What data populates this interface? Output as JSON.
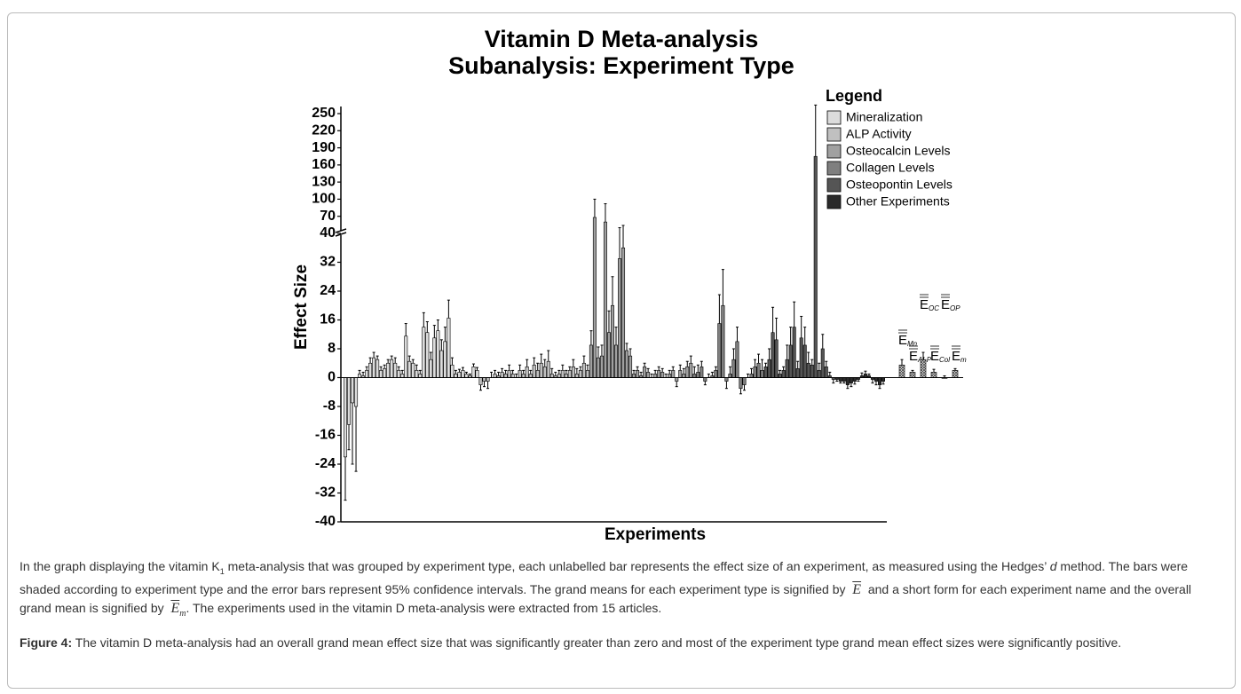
{
  "chart_data": {
    "type": "bar",
    "title": "Vitamin D Meta-analysis",
    "subtitle": "Subanalysis: Experiment Type",
    "y_label": "Effect Size",
    "x_label": "Experiments",
    "legend_title": "Legend",
    "ylim": [
      -40,
      250
    ],
    "ybreak": 40,
    "yticks": [
      -40,
      -32,
      -24,
      -16,
      -8,
      0,
      8,
      16,
      24,
      32,
      40,
      70,
      100,
      130,
      160,
      190,
      220,
      250
    ],
    "series": [
      {
        "name": "Mineralization",
        "color": "#dcdcdc",
        "values": [
          -22,
          -13,
          -7,
          -8,
          1,
          0.5,
          2,
          4,
          5.5,
          5,
          2,
          2.5,
          4,
          5,
          4,
          2,
          1,
          11.5,
          4.5,
          4,
          2,
          1,
          14,
          12.5,
          5,
          11,
          13,
          7.5,
          10,
          16.5,
          3.5,
          1,
          1.5,
          2,
          1,
          0.5,
          3,
          2
        ],
        "errors": [
          12,
          7,
          17,
          18,
          1,
          1,
          1,
          1.5,
          1.5,
          1,
          1,
          1,
          1,
          1,
          1.5,
          1,
          1,
          3.5,
          1.5,
          1,
          1.5,
          1,
          4,
          3,
          2,
          3.5,
          3,
          3,
          4,
          5,
          2,
          1,
          0.8,
          0.8,
          0.5,
          0.5,
          0.8,
          0.8
        ]
      },
      {
        "name": "ALP Activity",
        "color": "#c0c0c0",
        "values": [
          -2,
          -1,
          -1,
          0,
          1,
          0.5,
          1.5,
          1,
          2,
          1,
          0,
          2,
          1,
          3,
          1,
          3.5,
          2,
          4,
          3,
          4.5,
          1,
          0.5,
          1,
          2,
          1,
          2,
          3,
          1,
          2,
          4,
          2
        ],
        "errors": [
          1.5,
          1.5,
          2,
          1.5,
          1,
          1,
          1,
          1,
          1.5,
          1,
          1,
          1.5,
          1,
          2,
          1,
          2,
          2,
          2.5,
          2,
          3,
          1.5,
          1,
          1,
          1.5,
          1,
          1,
          2,
          1.5,
          1,
          2,
          1.5
        ]
      },
      {
        "name": "Osteocalcin Levels",
        "color": "#a0a0a0",
        "values": [
          9,
          68,
          5.5,
          6,
          60,
          12.5,
          20,
          9,
          33,
          36,
          7.5,
          6,
          1,
          2,
          0.5,
          3,
          1.5,
          0,
          1,
          2,
          1.5,
          0,
          1,
          2,
          -1,
          2,
          1,
          3,
          4
        ],
        "errors": [
          4,
          32,
          3,
          3,
          32,
          6,
          8,
          5,
          17,
          18,
          2,
          2,
          1,
          1,
          1,
          1,
          1,
          1,
          1,
          1,
          1,
          1,
          1,
          1,
          1.5,
          1.5,
          1.5,
          1.5,
          2
        ]
      },
      {
        "name": "Collagen Levels",
        "color": "#7f7f7f",
        "values": [
          1,
          1.5,
          3,
          -1,
          0,
          0.5,
          2,
          15,
          20,
          -1,
          1,
          5,
          10,
          -3,
          -2,
          0,
          1,
          3,
          4,
          2
        ],
        "errors": [
          2,
          2,
          1.5,
          1,
          1,
          1,
          1,
          8,
          10,
          2,
          2,
          3,
          4,
          1.5,
          1.5,
          1,
          1.5,
          2,
          2.5,
          3
        ]
      },
      {
        "name": "Osteopontin Levels",
        "color": "#555555",
        "values": [
          3,
          5,
          12.5,
          10.5,
          1,
          2,
          5,
          9,
          14,
          2.5,
          11,
          9,
          4,
          3.5,
          175,
          2,
          8,
          3,
          0.5,
          -0.5
        ],
        "errors": [
          1,
          3,
          7,
          6,
          1,
          1,
          4,
          5,
          7,
          2,
          6,
          5,
          3,
          1.5,
          90,
          2,
          4,
          1.5,
          1,
          1
        ]
      },
      {
        "name": "Other Experiments",
        "color": "#2a2a2a",
        "values": [
          -0.5,
          -1,
          -1,
          -2,
          -1.5,
          -1,
          -0.5,
          0.5,
          1,
          0.5,
          -0.5,
          -1,
          -2,
          -1
        ],
        "errors": [
          0.5,
          0.5,
          0.5,
          1,
          1,
          0.8,
          0.5,
          0.8,
          0.8,
          0.5,
          1,
          1,
          1,
          0.8
        ]
      }
    ],
    "grand_means": {
      "symbol": "E",
      "labels": [
        "Mn",
        "ALP",
        "OC",
        "Col",
        "OP",
        "m"
      ],
      "values": [
        3.5,
        1.5,
        5,
        1.5,
        0,
        2
      ],
      "errors": [
        1.5,
        0.5,
        2,
        0.8,
        0.5,
        0.5
      ]
    }
  },
  "caption": {
    "paragraph": [
      "In the graph displaying the vitamin K",
      "1",
      " meta-analysis that was grouped by experiment type, each unlabelled bar represents the effect size of an experiment, as measured using the Hedges’ ",
      "d",
      " method. The bars were shaded according to experiment type and the error bars represent 95% confidence intervals. The grand means for each experiment type is signified by ",
      "E",
      " and a short form for each experiment name and the overall grand mean is signified by ",
      "E",
      "m",
      ". The experiments used in the vitamin D meta-analysis were extracted from 15 articles."
    ],
    "figure_label": "Figure 4:",
    "figure_text": " The vitamin D meta-analysis had an overall grand mean effect size that was significantly greater than zero and most of the experiment type grand mean effect sizes were significantly positive."
  }
}
